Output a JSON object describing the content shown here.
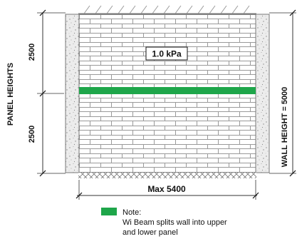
{
  "diagram": {
    "load_label": "1.0 kPa",
    "left_axis_title": "PANEL HEIGHTS",
    "upper_panel_height": "2500",
    "lower_panel_height": "2500",
    "right_axis_label": "WALL HEIGHT = 5000",
    "bottom_dimension": "Max 5400",
    "legend": {
      "title": "Note:",
      "line1": "Wi Beam splits wall into upper",
      "line2": "and lower panel"
    },
    "colors": {
      "beam": "#1ea64a",
      "brick_line": "#9a9a9a",
      "concrete": "#ececec",
      "dim_line": "#333333"
    },
    "icons": [
      "brick-wall-pattern",
      "concrete-column-stipple",
      "ground-hatch-pattern",
      "dimension-tick"
    ]
  }
}
